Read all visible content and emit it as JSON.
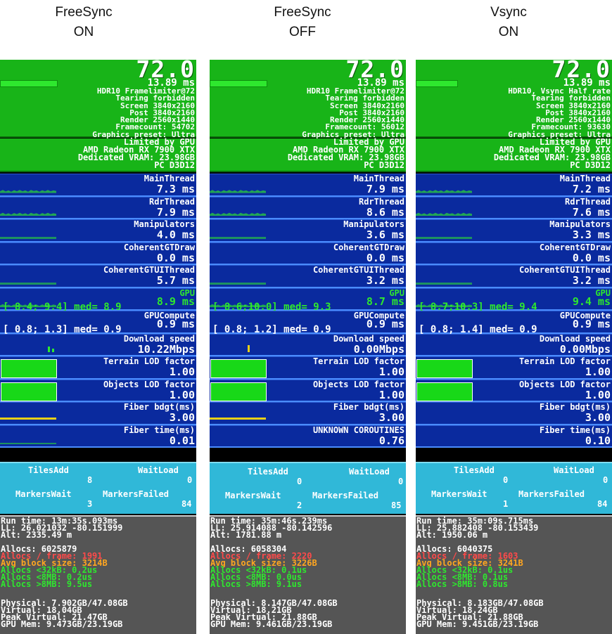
{
  "columns": [
    {
      "header": [
        "FreeSync",
        "ON"
      ],
      "fps": "72.0",
      "ms": "13.89 ms",
      "top_lines": [
        "HDR10 Framelimiter@72",
        "Tearing forbidden",
        "Screen 3840x2160",
        "Post 3840x2160",
        "Render 2560x1440",
        "Framecount: 54702",
        "Graphics preset: Ultra"
      ],
      "gpu_lines": [
        "Limited by GPU",
        "AMD Radeon RX 7900 XTX",
        "Dedicated VRAM: 23.98GB",
        "PC D3D12"
      ],
      "threads": [
        {
          "name": "MainThread",
          "value": "7.3 ms"
        },
        {
          "name": "RdrThread",
          "value": "7.9 ms"
        },
        {
          "name": "Manipulators",
          "value": "4.0 ms"
        },
        {
          "name": "CoherentGTDraw",
          "value": "0.0 ms"
        },
        {
          "name": "CoherentGTUIThread",
          "value": "5.7 ms"
        },
        {
          "name": "GPU",
          "value": "8.9 ms",
          "range": "[ 8.4; 9.4] med= 8.9"
        },
        {
          "name": "GPUCompute",
          "value": "0.9 ms",
          "range": "[ 0.8; 1.3] med= 0.9"
        },
        {
          "name": "Download speed",
          "value": "10.22Mbps"
        },
        {
          "name": "Terrain LOD factor",
          "value": "1.00"
        },
        {
          "name": "Objects LOD factor",
          "value": "1.00"
        },
        {
          "name": "Fiber bdgt(ms)",
          "value": "3.00"
        },
        {
          "name": "Fiber time(ms)",
          "value": "0.01"
        }
      ],
      "counters": {
        "tiles_add_label": "TilesAdd",
        "tiles_add": "8",
        "wait_load_label": "WaitLoad",
        "wait_load": "0",
        "markers_wait_label": "MarkersWait",
        "markers_wait": "3",
        "markers_failed_label": "MarkersFailed",
        "markers_failed": "84"
      },
      "memory": {
        "run_time": "Run time: 13m:35s.093ms",
        "ll": "LL: 26.021032 -80.151999",
        "alt": "Alt: 2335.49 m",
        "allocs": "Allocs: 6025879",
        "allocs_frame": "Allocs / frame: 1991",
        "avg_block": "Avg block size: 3214B",
        "allocs_32k": "Allocs <32kB: 0.2us",
        "allocs_8mb_lt": "Allocs <8MB: 0.2us",
        "allocs_8mb_gt": "Allocs >8MB: 9.5us",
        "physical": "Physical: 7.902GB/47.08GB",
        "virtual": "Virtual: 18.04GB",
        "peak_virtual": "Peak Virtual: 21.47GB",
        "gpu_mem": "GPU Mem: 9.473GB/23.19GB"
      }
    },
    {
      "header": [
        "FreeSync",
        "OFF"
      ],
      "fps": "72.0",
      "ms": "13.89 ms",
      "top_lines": [
        "HDR10 Framelimiter@72",
        "Tearing forbidden",
        "Screen 3840x2160",
        "Post 3840x2160",
        "Render 2560x1440",
        "Framecount: 56012",
        "Graphics preset: Ultra"
      ],
      "gpu_lines": [
        "Limited by GPU",
        "AMD Radeon RX 7900 XTX",
        "Dedicated VRAM: 23.98GB",
        "PC D3D12"
      ],
      "threads": [
        {
          "name": "MainThread",
          "value": "7.9 ms"
        },
        {
          "name": "RdrThread",
          "value": "8.6 ms"
        },
        {
          "name": "Manipulators",
          "value": "3.6 ms"
        },
        {
          "name": "CoherentGTDraw",
          "value": "0.0 ms"
        },
        {
          "name": "CoherentGTUIThread",
          "value": "3.2 ms"
        },
        {
          "name": "GPU",
          "value": "8.7 ms",
          "range": "[ 8.6;10.0] med= 9.3"
        },
        {
          "name": "GPUCompute",
          "value": "0.9 ms",
          "range": "[ 0.8; 1.2] med= 0.9"
        },
        {
          "name": "Download speed",
          "value": "0.00Mbps"
        },
        {
          "name": "Terrain LOD factor",
          "value": "1.00"
        },
        {
          "name": "Objects LOD factor",
          "value": "1.00"
        },
        {
          "name": "Fiber bdgt(ms)",
          "value": "3.00"
        },
        {
          "name": "UNKNOWN COROUTINES",
          "value": "0.76"
        }
      ],
      "counters": {
        "tiles_add_label": "TilesAdd",
        "tiles_add": "0",
        "wait_load_label": "WaitLoad",
        "wait_load": "0",
        "markers_wait_label": "MarkersWait",
        "markers_wait": "2",
        "markers_failed_label": "MarkersFailed",
        "markers_failed": "85"
      },
      "memory": {
        "run_time": "Run time: 35m:46s.239ms",
        "ll": "LL: 25.914088 -80.142596",
        "alt": "Alt: 1781.88 m",
        "allocs": "Allocs: 6058304",
        "allocs_frame": "Allocs / frame: 2220",
        "avg_block": "Avg block size: 3226B",
        "allocs_32k": "Allocs <32kB: 0.1us",
        "allocs_8mb_lt": "Allocs <8MB: 0.0us",
        "allocs_8mb_gt": "Allocs >8MB: 9.1us",
        "physical": "Physical: 8.147GB/47.08GB",
        "virtual": "Virtual: 18.21GB",
        "peak_virtual": "Peak Virtual: 21.88GB",
        "gpu_mem": "GPU Mem: 9.461GB/23.19GB"
      }
    },
    {
      "header": [
        "Vsync",
        "ON"
      ],
      "fps": "72.0",
      "ms": "13.89 ms",
      "top_lines": [
        "HDR10, Vsync Half rate",
        "Tearing forbidden",
        "Screen 3840x2160",
        "Post 3840x2160",
        "Render 2560x1440",
        "Framecount: 93630",
        "Graphics preset: Ultra"
      ],
      "gpu_lines": [
        "Limited by GPU",
        "AMD Radeon RX 7900 XTX",
        "Dedicated VRAM: 23.98GB",
        "PC D3D12"
      ],
      "threads": [
        {
          "name": "MainThread",
          "value": "7.2 ms"
        },
        {
          "name": "RdrThread",
          "value": "7.6 ms"
        },
        {
          "name": "Manipulators",
          "value": "3.3 ms"
        },
        {
          "name": "CoherentGTDraw",
          "value": "0.0 ms"
        },
        {
          "name": "CoherentGTUIThread",
          "value": "3.2 ms"
        },
        {
          "name": "GPU",
          "value": "9.4 ms",
          "range": "[ 8.7;10.3] med= 9.4"
        },
        {
          "name": "GPUCompute",
          "value": "0.9 ms",
          "range": "[ 0.8; 1.4] med= 0.9"
        },
        {
          "name": "Download speed",
          "value": "0.00Mbps"
        },
        {
          "name": "Terrain LOD factor",
          "value": "1.00"
        },
        {
          "name": "Objects LOD factor",
          "value": "1.00"
        },
        {
          "name": "Fiber bdgt(ms)",
          "value": "3.00"
        },
        {
          "name": "Fiber time(ms)",
          "value": "0.10"
        }
      ],
      "counters": {
        "tiles_add_label": "TilesAdd",
        "tiles_add": "0",
        "wait_load_label": "WaitLoad",
        "wait_load": "0",
        "markers_wait_label": "MarkersWait",
        "markers_wait": "1",
        "markers_failed_label": "MarkersFailed",
        "markers_failed": "84"
      },
      "memory": {
        "run_time": "Run time: 35m:09s.715ms",
        "ll": "LL: 25.882408 -80.153439",
        "alt": "Alt: 1950.06 m",
        "allocs": "Allocs: 6040375",
        "allocs_frame": "Allocs / frame: 1603",
        "avg_block": "Avg block size: 3241B",
        "allocs_32k": "Allocs <32kB: 0.1us",
        "allocs_8mb_lt": "Allocs <8MB: 0.1us",
        "allocs_8mb_gt": "Allocs >8MB: 0.8us",
        "physical": "Physical: 8.183GB/47.08GB",
        "virtual": "Virtual: 18.24GB",
        "peak_virtual": "Peak Virtual: 21.88GB",
        "gpu_mem": "GPU Mem: 9.451GB/23.19GB"
      }
    }
  ],
  "colors": {
    "overlay_green": "#18b418",
    "row_blue": "#0a2a9e",
    "counter_cyan": "#30b8d8",
    "memory_gray": "#555555",
    "alert_red": "#ff4a4a",
    "warn_orange": "#ffa620"
  }
}
